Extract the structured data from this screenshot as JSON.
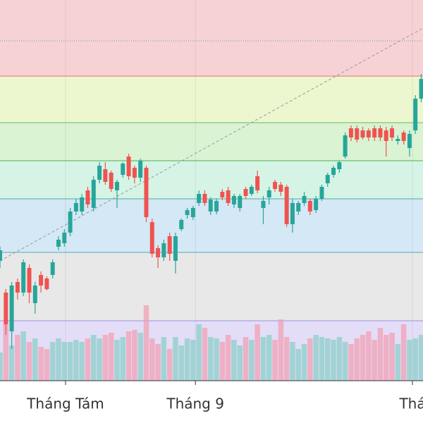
{
  "chart_data": {
    "type": "candlestick",
    "up_color": "#26a69a",
    "down_color": "#ef5350",
    "volume_up_color": "#8ccfc8",
    "volume_down_color": "#f2a0b4",
    "ylim": [
      0,
      540
    ],
    "xlim": [
      0,
      72.3
    ],
    "xticks": [
      {
        "value": 11.2,
        "label": "Tháng Tám"
      },
      {
        "value": 33.4,
        "label": "Tháng 9"
      },
      {
        "value": 70.5,
        "label": "Thá"
      }
    ],
    "grid": true,
    "bands": [
      {
        "from": 0,
        "to": 85,
        "color": "#e3ddf7",
        "line_color": "#9c8fe0"
      },
      {
        "from": 85,
        "to": 182,
        "color": "#e8e8e8",
        "line_color": "#5aa9b8"
      },
      {
        "from": 182,
        "to": 258,
        "color": "#d5e8f5",
        "line_color": "#4ab0a0"
      },
      {
        "from": 258,
        "to": 312,
        "color": "#d6f4e6",
        "line_color": "#4caf50"
      },
      {
        "from": 312,
        "to": 366,
        "color": "#d9f3d3",
        "line_color": "#66bb6a"
      },
      {
        "from": 366,
        "to": 432,
        "color": "#ecf6cf",
        "line_color": "#e57373"
      },
      {
        "from": 432,
        "to": 540,
        "color": "#f7d2d4",
        "line_color": "#f7d2d4"
      }
    ],
    "dotted_level": {
      "value": 482,
      "color": "#6ba08a"
    },
    "trendline": {
      "x": [
        0,
        72.3
      ],
      "y": [
        170,
        500
      ],
      "color": "#999999"
    },
    "open": [
      170,
      125,
      70,
      140,
      125,
      160,
      110,
      150,
      145,
      150,
      190,
      195,
      210,
      240,
      240,
      270,
      245,
      285,
      300,
      295,
      270,
      292,
      318,
      302,
      288,
      302,
      225,
      188,
      175,
      205,
      170,
      215,
      235,
      232,
      252,
      265,
      240,
      240,
      268,
      270,
      250,
      245,
      272,
      265,
      290,
      245,
      260,
      282,
      278,
      275,
      222,
      240,
      252,
      255,
      242,
      258,
      280,
      292,
      300,
      318,
      358,
      358,
      355,
      355,
      358,
      358,
      355,
      358,
      340,
      352,
      330,
      355,
      400
    ],
    "high": [
      190,
      130,
      140,
      145,
      172,
      165,
      140,
      155,
      148,
      172,
      205,
      215,
      245,
      258,
      265,
      275,
      290,
      310,
      310,
      298,
      285,
      310,
      322,
      305,
      315,
      305,
      230,
      192,
      200,
      210,
      210,
      230,
      245,
      248,
      270,
      270,
      260,
      258,
      272,
      275,
      265,
      265,
      275,
      278,
      298,
      262,
      275,
      285,
      282,
      278,
      258,
      255,
      268,
      258,
      262,
      278,
      295,
      305,
      312,
      352,
      362,
      362,
      360,
      358,
      362,
      362,
      360,
      362,
      348,
      355,
      355,
      405,
      435
    ],
    "low": [
      160,
      65,
      45,
      115,
      120,
      110,
      95,
      125,
      128,
      145,
      185,
      190,
      205,
      235,
      235,
      245,
      240,
      280,
      278,
      268,
      245,
      288,
      285,
      280,
      282,
      225,
      175,
      160,
      170,
      170,
      152,
      212,
      230,
      228,
      248,
      248,
      235,
      236,
      256,
      248,
      245,
      240,
      258,
      262,
      266,
      222,
      250,
      268,
      262,
      218,
      210,
      235,
      248,
      235,
      238,
      255,
      275,
      288,
      295,
      315,
      340,
      338,
      342,
      340,
      340,
      340,
      318,
      340,
      335,
      335,
      318,
      350,
      395
    ],
    "close": [
      185,
      80,
      135,
      125,
      168,
      125,
      135,
      135,
      130,
      168,
      200,
      210,
      240,
      252,
      260,
      250,
      285,
      305,
      282,
      272,
      282,
      308,
      290,
      288,
      312,
      232,
      180,
      175,
      195,
      180,
      205,
      228,
      242,
      245,
      265,
      252,
      257,
      255,
      260,
      252,
      262,
      262,
      262,
      275,
      270,
      255,
      270,
      272,
      268,
      222,
      252,
      252,
      262,
      240,
      258,
      275,
      292,
      302,
      310,
      348,
      345,
      342,
      345,
      345,
      345,
      345,
      340,
      345,
      343,
      340,
      350,
      400,
      428
    ],
    "volume": [
      40,
      80,
      50,
      65,
      70,
      55,
      60,
      48,
      45,
      55,
      60,
      55,
      55,
      58,
      55,
      60,
      65,
      60,
      65,
      68,
      58,
      62,
      70,
      72,
      68,
      107,
      60,
      52,
      62,
      45,
      62,
      50,
      60,
      58,
      80,
      75,
      62,
      60,
      55,
      65,
      58,
      50,
      62,
      58,
      80,
      62,
      65,
      58,
      87,
      62,
      55,
      45,
      52,
      60,
      65,
      62,
      60,
      58,
      62,
      55,
      52,
      60,
      65,
      70,
      58,
      75,
      65,
      68,
      52,
      80,
      58,
      60,
      65
    ]
  }
}
